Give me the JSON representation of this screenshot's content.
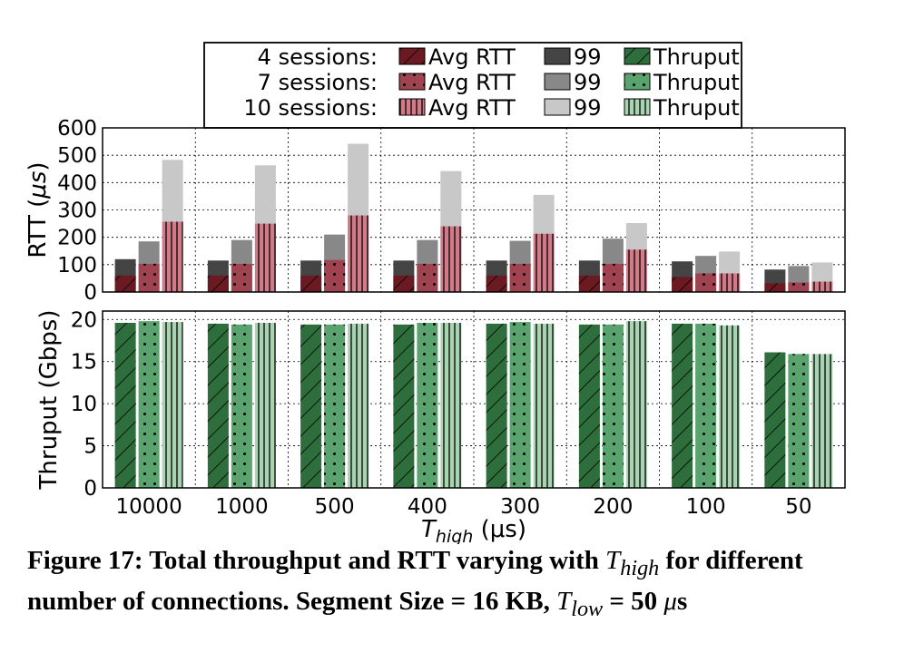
{
  "caption": {
    "pre": "Figure 17: Total throughput and RTT varying with ",
    "thigh": "T",
    "thigh_sub": "high",
    "mid": " for different number of connections. Segment Size = 16 KB, ",
    "tlow": "T",
    "tlow_sub": "low",
    "post": " = 50 ",
    "unit": "μ",
    "unit_rest": "s"
  },
  "legend": {
    "rows": [
      {
        "label": "4 sessions:"
      },
      {
        "label": "7 sessions:"
      },
      {
        "label": "10 sessions:"
      }
    ],
    "avg_label": "Avg RTT",
    "p99_label": "99",
    "thru_label": "Thruput"
  },
  "colors": {
    "avg": [
      "#6b1a22",
      "#a04350",
      "#d27a88"
    ],
    "p99": [
      "#444444",
      "#888888",
      "#c8c8c8"
    ],
    "thru": [
      "#2e6e3c",
      "#5aa36e",
      "#a9d4b2"
    ]
  },
  "chart_data": [
    {
      "type": "bar",
      "ylabel_main": "RTT (",
      "ylabel_unit": "μs",
      "ylabel_close": ")",
      "ylim": [
        0,
        600
      ],
      "yticks": [
        "0",
        "100",
        "200",
        "300",
        "400",
        "500",
        "600"
      ],
      "grid": true,
      "categories": [
        "10000",
        "1000",
        "500",
        "400",
        "300",
        "200",
        "100",
        "50"
      ],
      "series": [
        {
          "name": "4 sessions: Avg RTT",
          "values": [
            60,
            60,
            60,
            60,
            60,
            60,
            55,
            32
          ]
        },
        {
          "name": "4 sessions: 99",
          "values": [
            120,
            115,
            115,
            115,
            115,
            115,
            112,
            82
          ]
        },
        {
          "name": "7 sessions: Avg RTT",
          "values": [
            103,
            103,
            117,
            103,
            103,
            103,
            68,
            35
          ]
        },
        {
          "name": "7 sessions: 99",
          "values": [
            185,
            190,
            210,
            190,
            187,
            195,
            132,
            95
          ]
        },
        {
          "name": "10 sessions: Avg RTT",
          "values": [
            257,
            250,
            280,
            240,
            213,
            155,
            68,
            38
          ]
        },
        {
          "name": "10 sessions: 99",
          "values": [
            483,
            463,
            542,
            442,
            355,
            252,
            148,
            108
          ]
        }
      ]
    },
    {
      "type": "bar",
      "ylabel": "Thruput (Gbps)",
      "xlabel_main": "T",
      "xlabel_sub": "high",
      "xlabel_unit": " (μs)",
      "ylim": [
        0,
        21
      ],
      "yticks": [
        "0",
        "5",
        "10",
        "15",
        "20"
      ],
      "grid": true,
      "categories": [
        "10000",
        "1000",
        "500",
        "400",
        "300",
        "200",
        "100",
        "50"
      ],
      "series": [
        {
          "name": "4 sessions: Thruput",
          "values": [
            19.6,
            19.5,
            19.4,
            19.4,
            19.5,
            19.4,
            19.5,
            16.1
          ]
        },
        {
          "name": "7 sessions: Thruput",
          "values": [
            19.8,
            19.4,
            19.4,
            19.6,
            19.7,
            19.4,
            19.5,
            15.9
          ]
        },
        {
          "name": "10 sessions: Thruput",
          "values": [
            19.7,
            19.6,
            19.5,
            19.6,
            19.5,
            19.8,
            19.3,
            15.9
          ]
        }
      ]
    }
  ]
}
